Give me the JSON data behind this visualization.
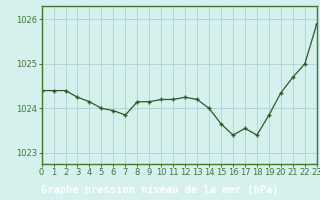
{
  "x": [
    0,
    1,
    2,
    3,
    4,
    5,
    6,
    7,
    8,
    9,
    10,
    11,
    12,
    13,
    14,
    15,
    16,
    17,
    18,
    19,
    20,
    21,
    22,
    23
  ],
  "y": [
    1024.4,
    1024.4,
    1024.4,
    1024.25,
    1024.15,
    1024.0,
    1023.95,
    1023.85,
    1024.15,
    1024.15,
    1024.2,
    1024.2,
    1024.25,
    1024.2,
    1024.0,
    1023.65,
    1023.4,
    1023.55,
    1023.4,
    1023.85,
    1024.35,
    1024.7,
    1025.0,
    1025.9
  ],
  "line_color": "#2d5a27",
  "marker_color": "#2d5a27",
  "bg_color": "#d6f0ee",
  "grid_color": "#aad4d0",
  "xlabel": "Graphe pression niveau de la mer (hPa)",
  "xlabel_bg": "#3a7a32",
  "xlabel_fg": "#ffffff",
  "ylim_min": 1022.75,
  "ylim_max": 1026.3,
  "yticks": [
    1023,
    1024,
    1025,
    1026
  ],
  "xticks": [
    0,
    1,
    2,
    3,
    4,
    5,
    6,
    7,
    8,
    9,
    10,
    11,
    12,
    13,
    14,
    15,
    16,
    17,
    18,
    19,
    20,
    21,
    22,
    23
  ],
  "title_fontsize": 7.5,
  "tick_fontsize": 6.0,
  "border_color": "#3a7a32"
}
